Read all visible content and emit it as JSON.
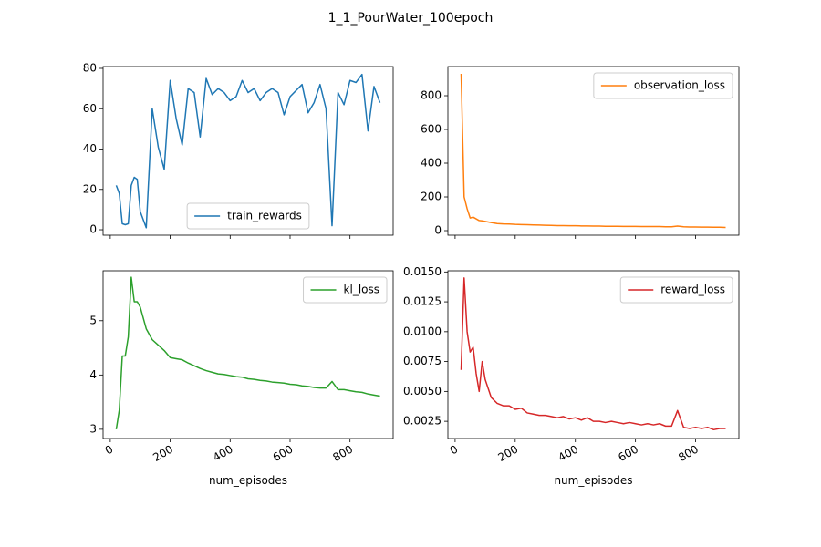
{
  "title": "1_1_PourWater_100epoch",
  "chart_data": [
    {
      "type": "line",
      "x": [
        20,
        30,
        40,
        50,
        60,
        70,
        80,
        90,
        100,
        120,
        140,
        160,
        180,
        200,
        220,
        240,
        260,
        280,
        300,
        320,
        340,
        360,
        380,
        400,
        420,
        440,
        460,
        480,
        500,
        520,
        540,
        560,
        580,
        600,
        620,
        640,
        660,
        680,
        700,
        720,
        740,
        760,
        780,
        800,
        820,
        840,
        860,
        880,
        900
      ],
      "series": [
        {
          "name": "train_rewards",
          "color": "#1f77b4",
          "values": [
            22,
            18,
            3,
            2.5,
            3,
            22,
            26,
            25,
            9,
            1,
            60,
            41,
            30,
            74,
            55,
            42,
            70,
            68,
            46,
            75,
            67,
            70,
            68,
            64,
            66,
            74,
            68,
            70,
            64,
            68,
            70,
            68,
            57,
            66,
            69,
            72,
            58,
            63,
            72,
            60,
            2,
            68,
            62,
            74,
            73,
            77,
            49,
            71,
            63
          ]
        }
      ],
      "xlim": [
        -24,
        944
      ],
      "ylim": [
        -2.7,
        80.9
      ],
      "xticks": [
        0,
        200,
        400,
        600,
        800
      ],
      "show_xtick_labels": false,
      "yticks": [
        0,
        20,
        40,
        60,
        80
      ],
      "legend": "lower center"
    },
    {
      "type": "line",
      "x": [
        20,
        30,
        40,
        50,
        60,
        70,
        80,
        90,
        100,
        120,
        140,
        160,
        180,
        200,
        220,
        240,
        260,
        280,
        300,
        320,
        340,
        360,
        380,
        400,
        420,
        440,
        460,
        480,
        500,
        520,
        540,
        560,
        580,
        600,
        620,
        640,
        660,
        680,
        700,
        720,
        740,
        760,
        780,
        800,
        820,
        840,
        860,
        880,
        900
      ],
      "series": [
        {
          "name": "observation_loss",
          "color": "#ff7f0e",
          "values": [
            930,
            200,
            130,
            75,
            80,
            70,
            60,
            58,
            55,
            48,
            42,
            40,
            39,
            37,
            36,
            35,
            34,
            33,
            32,
            31,
            30,
            30,
            29,
            29,
            28,
            28,
            27,
            27,
            26,
            26,
            26,
            25,
            25,
            25,
            24,
            24,
            24,
            24,
            23,
            23,
            27,
            23,
            22,
            22,
            21,
            21,
            20,
            20,
            19
          ]
        }
      ],
      "xlim": [
        -24,
        944
      ],
      "ylim": [
        -27,
        973
      ],
      "xticks": [
        0,
        200,
        400,
        600,
        800
      ],
      "show_xtick_labels": false,
      "yticks": [
        0,
        200,
        400,
        600,
        800
      ],
      "legend": "upper right"
    },
    {
      "type": "line",
      "x": [
        20,
        30,
        40,
        50,
        60,
        70,
        80,
        90,
        100,
        120,
        140,
        160,
        180,
        200,
        220,
        240,
        260,
        280,
        300,
        320,
        340,
        360,
        380,
        400,
        420,
        440,
        460,
        480,
        500,
        520,
        540,
        560,
        580,
        600,
        620,
        640,
        660,
        680,
        700,
        720,
        740,
        760,
        780,
        800,
        820,
        840,
        860,
        880,
        900
      ],
      "series": [
        {
          "name": "kl_loss",
          "color": "#2ca02c",
          "values": [
            3.0,
            3.35,
            4.35,
            4.35,
            4.7,
            5.8,
            5.35,
            5.35,
            5.25,
            4.85,
            4.65,
            4.55,
            4.45,
            4.32,
            4.3,
            4.28,
            4.22,
            4.17,
            4.12,
            4.08,
            4.05,
            4.02,
            4.01,
            3.99,
            3.97,
            3.96,
            3.93,
            3.92,
            3.9,
            3.89,
            3.87,
            3.86,
            3.85,
            3.83,
            3.82,
            3.8,
            3.79,
            3.77,
            3.76,
            3.76,
            3.88,
            3.73,
            3.73,
            3.71,
            3.69,
            3.68,
            3.65,
            3.63,
            3.61
          ]
        }
      ],
      "xlim": [
        -24,
        944
      ],
      "ylim": [
        2.83,
        5.92
      ],
      "xticks": [
        0,
        200,
        400,
        600,
        800
      ],
      "show_xtick_labels": true,
      "yticks": [
        3,
        4,
        5
      ],
      "legend": "upper right",
      "xlabel": "num_episodes"
    },
    {
      "type": "line",
      "x": [
        20,
        30,
        40,
        50,
        60,
        70,
        80,
        90,
        100,
        120,
        140,
        160,
        180,
        200,
        220,
        240,
        260,
        280,
        300,
        320,
        340,
        360,
        380,
        400,
        420,
        440,
        460,
        480,
        500,
        520,
        540,
        560,
        580,
        600,
        620,
        640,
        660,
        680,
        700,
        720,
        740,
        760,
        780,
        800,
        820,
        840,
        860,
        880,
        900
      ],
      "series": [
        {
          "name": "reward_loss",
          "color": "#d62728",
          "values": [
            0.0068,
            0.0145,
            0.01,
            0.0083,
            0.0087,
            0.0065,
            0.005,
            0.0075,
            0.006,
            0.0045,
            0.004,
            0.0038,
            0.0038,
            0.0035,
            0.0036,
            0.0032,
            0.0031,
            0.003,
            0.003,
            0.0029,
            0.0028,
            0.0029,
            0.0027,
            0.0028,
            0.0026,
            0.0028,
            0.0025,
            0.0025,
            0.0024,
            0.0025,
            0.0024,
            0.0023,
            0.0024,
            0.0023,
            0.0022,
            0.0023,
            0.0022,
            0.0023,
            0.0021,
            0.0021,
            0.0034,
            0.002,
            0.0019,
            0.002,
            0.0019,
            0.002,
            0.0018,
            0.0019,
            0.0019
          ]
        }
      ],
      "xlim": [
        -24,
        944
      ],
      "ylim": [
        0.00106,
        0.0151
      ],
      "xticks": [
        0,
        200,
        400,
        600,
        800
      ],
      "show_xtick_labels": true,
      "yticks": [
        0.0025,
        {
          "value": 0.005,
          "label": "0.0050"
        },
        {
          "value": 0.0075,
          "label": "0.0075"
        },
        {
          "value": 0.01,
          "label": "0.0100"
        },
        {
          "value": 0.0125,
          "label": "0.0125"
        },
        {
          "value": 0.015,
          "label": "0.0150"
        }
      ],
      "legend": "upper right",
      "xlabel": "num_episodes"
    }
  ]
}
